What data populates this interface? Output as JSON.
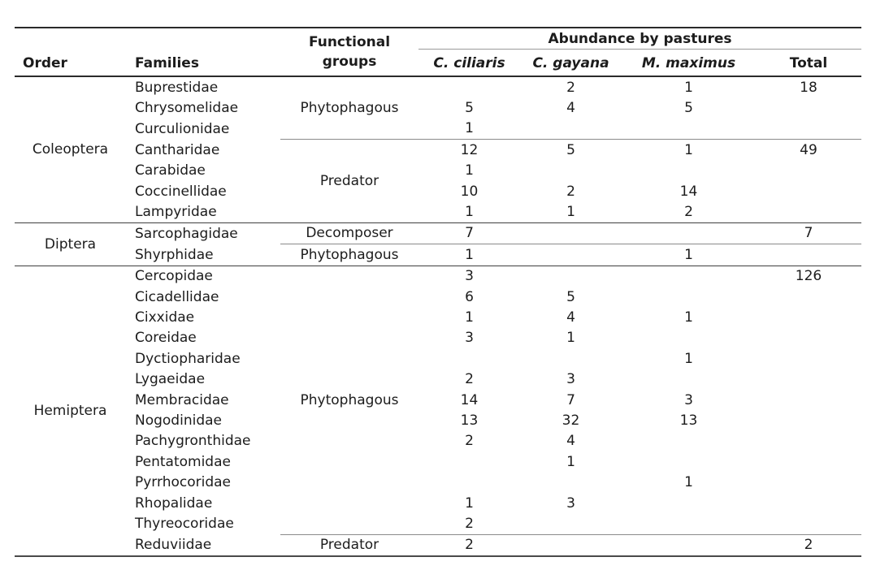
{
  "table": {
    "headers": {
      "order": "Order",
      "families": "Families",
      "functional_groups": "Functional groups",
      "abundance": "Abundance by pastures",
      "pastures": [
        "C. ciliaris",
        "C. gayana",
        "M. maximus"
      ],
      "total": "Total"
    },
    "sections": [
      {
        "order": "Coleoptera",
        "groups": [
          {
            "functional_group": "Phytophagous",
            "rows": [
              {
                "family": "Buprestidae",
                "c_ciliaris": "",
                "c_gayana": "2",
                "m_maximus": "1",
                "total": "18"
              },
              {
                "family": "Chrysomelidae",
                "c_ciliaris": "5",
                "c_gayana": "4",
                "m_maximus": "5",
                "total": ""
              },
              {
                "family": "Curculionidae",
                "c_ciliaris": "1",
                "c_gayana": "",
                "m_maximus": "",
                "total": ""
              }
            ]
          },
          {
            "functional_group": "Predator",
            "rows": [
              {
                "family": "Cantharidae",
                "c_ciliaris": "12",
                "c_gayana": "5",
                "m_maximus": "1",
                "total": "49"
              },
              {
                "family": "Carabidae",
                "c_ciliaris": "1",
                "c_gayana": "",
                "m_maximus": "",
                "total": ""
              },
              {
                "family": "Coccinellidae",
                "c_ciliaris": "10",
                "c_gayana": "2",
                "m_maximus": "14",
                "total": ""
              },
              {
                "family": "Lampyridae",
                "c_ciliaris": "1",
                "c_gayana": "1",
                "m_maximus": "2",
                "total": ""
              }
            ]
          }
        ]
      },
      {
        "order": "Diptera",
        "groups": [
          {
            "functional_group": "Decomposer",
            "rows": [
              {
                "family": "Sarcophagidae",
                "c_ciliaris": "7",
                "c_gayana": "",
                "m_maximus": "",
                "total": "7"
              }
            ]
          },
          {
            "functional_group": "Phytophagous",
            "rows": [
              {
                "family": "Shyrphidae",
                "c_ciliaris": "1",
                "c_gayana": "",
                "m_maximus": "1",
                "total": ""
              }
            ]
          }
        ]
      },
      {
        "order": "Hemiptera",
        "groups": [
          {
            "functional_group": "Phytophagous",
            "rows": [
              {
                "family": "Cercopidae",
                "c_ciliaris": "3",
                "c_gayana": "",
                "m_maximus": "",
                "total": "126"
              },
              {
                "family": "Cicadellidae",
                "c_ciliaris": "6",
                "c_gayana": "5",
                "m_maximus": "",
                "total": ""
              },
              {
                "family": "Cixxidae",
                "c_ciliaris": "1",
                "c_gayana": "4",
                "m_maximus": "1",
                "total": ""
              },
              {
                "family": "Coreidae",
                "c_ciliaris": "3",
                "c_gayana": "1",
                "m_maximus": "",
                "total": ""
              },
              {
                "family": "Dyctiopharidae",
                "c_ciliaris": "",
                "c_gayana": "",
                "m_maximus": "1",
                "total": ""
              },
              {
                "family": "Lygaeidae",
                "c_ciliaris": "2",
                "c_gayana": "3",
                "m_maximus": "",
                "total": ""
              },
              {
                "family": "Membracidae",
                "c_ciliaris": "14",
                "c_gayana": "7",
                "m_maximus": "3",
                "total": ""
              },
              {
                "family": "Nogodinidae",
                "c_ciliaris": "13",
                "c_gayana": "32",
                "m_maximus": "13",
                "total": ""
              },
              {
                "family": "Pachygronthidae",
                "c_ciliaris": "2",
                "c_gayana": "4",
                "m_maximus": "",
                "total": ""
              },
              {
                "family": "Pentatomidae",
                "c_ciliaris": "",
                "c_gayana": "1",
                "m_maximus": "",
                "total": ""
              },
              {
                "family": "Pyrrhocoridae",
                "c_ciliaris": "",
                "c_gayana": "",
                "m_maximus": "1",
                "total": ""
              },
              {
                "family": "Rhopalidae",
                "c_ciliaris": "1",
                "c_gayana": "3",
                "m_maximus": "",
                "total": ""
              },
              {
                "family": "Thyreocoridae",
                "c_ciliaris": "2",
                "c_gayana": "",
                "m_maximus": "",
                "total": ""
              }
            ]
          },
          {
            "functional_group": "Predator",
            "rows": [
              {
                "family": "Reduviidae",
                "c_ciliaris": "2",
                "c_gayana": "",
                "m_maximus": "",
                "total": "2"
              }
            ]
          }
        ]
      }
    ],
    "colors": {
      "text": "#1c1c1c",
      "line_major": "#2a2a2a",
      "line_section": "#3f3f3f",
      "line_minor": "#8a8a8a",
      "background": "#ffffff"
    }
  }
}
